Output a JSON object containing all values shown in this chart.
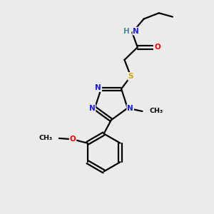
{
  "bg_color": "#ebebeb",
  "atom_colors": {
    "C": "#000000",
    "N": "#1a1aff",
    "O": "#ff0000",
    "S": "#ccaa00",
    "H": "#4a8f8f"
  },
  "bond_lw": 1.6,
  "font_size": 7.5,
  "font_size_small": 6.8
}
